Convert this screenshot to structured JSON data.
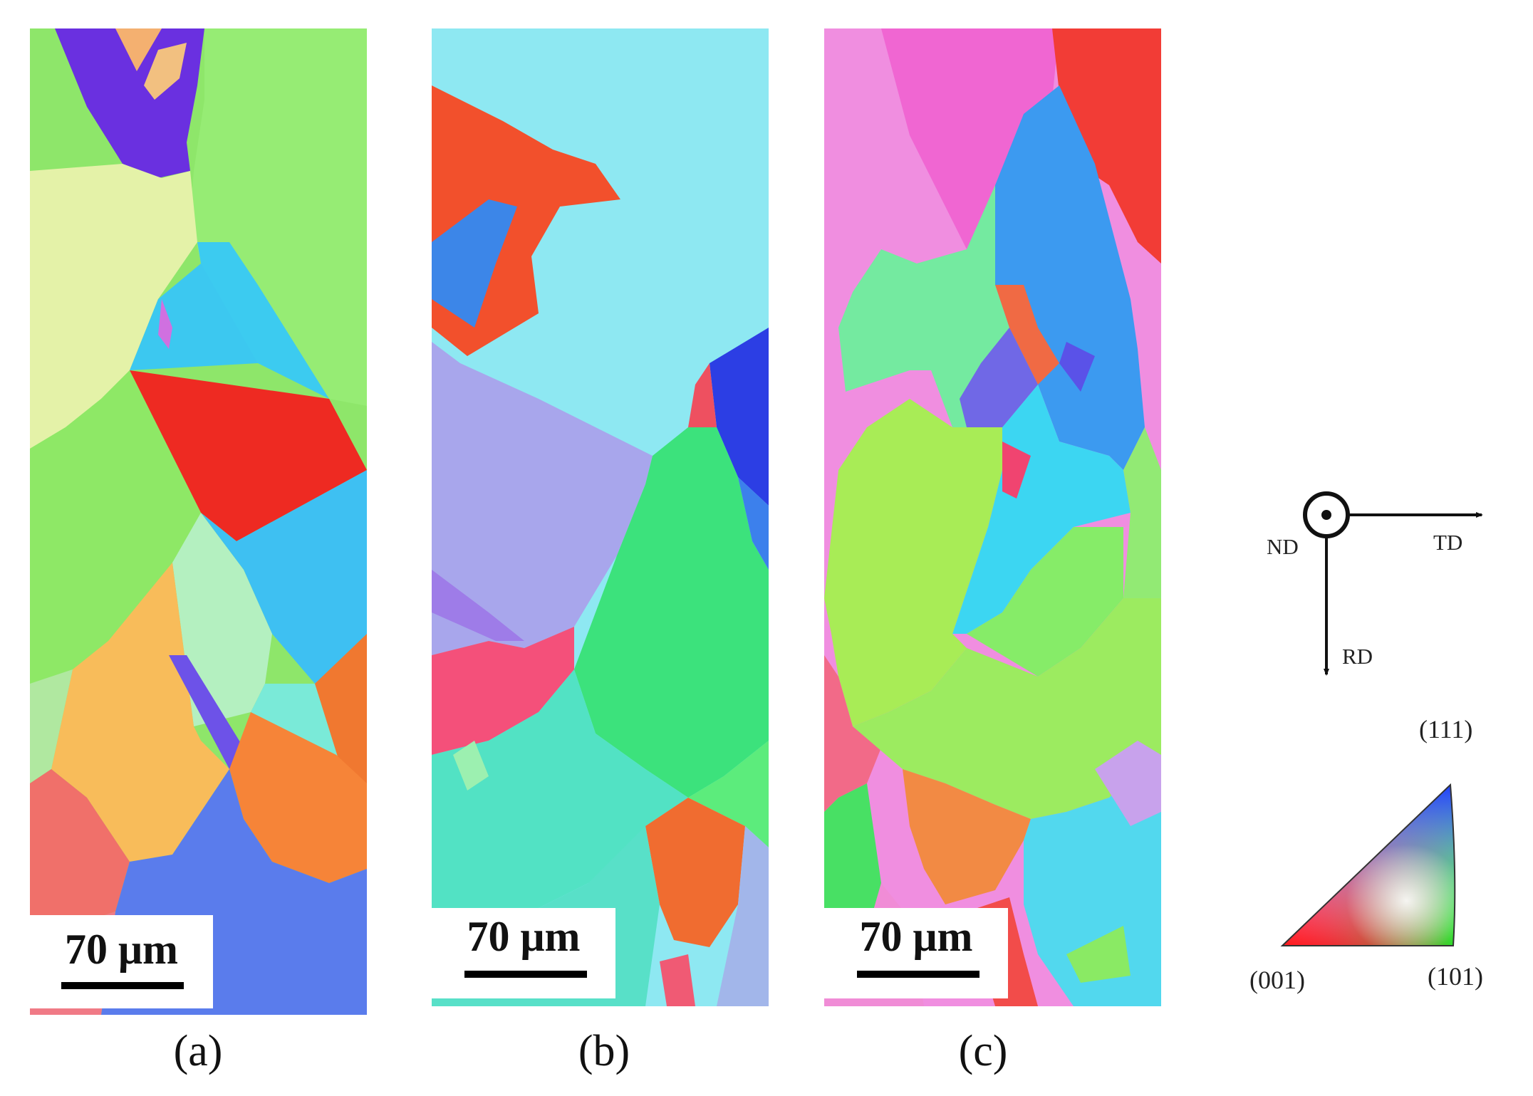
{
  "panels": [
    {
      "id": "a",
      "scale_label": "70 μm",
      "caption": "(a)"
    },
    {
      "id": "b",
      "scale_label": "70 μm",
      "caption": "(b)"
    },
    {
      "id": "c",
      "scale_label": "70 μm",
      "caption": "(c)"
    }
  ],
  "axes": {
    "nd": "ND",
    "td": "TD",
    "rd": "RD"
  },
  "ipf": {
    "top": "(111)",
    "left": "(001)",
    "right": "(101)"
  }
}
